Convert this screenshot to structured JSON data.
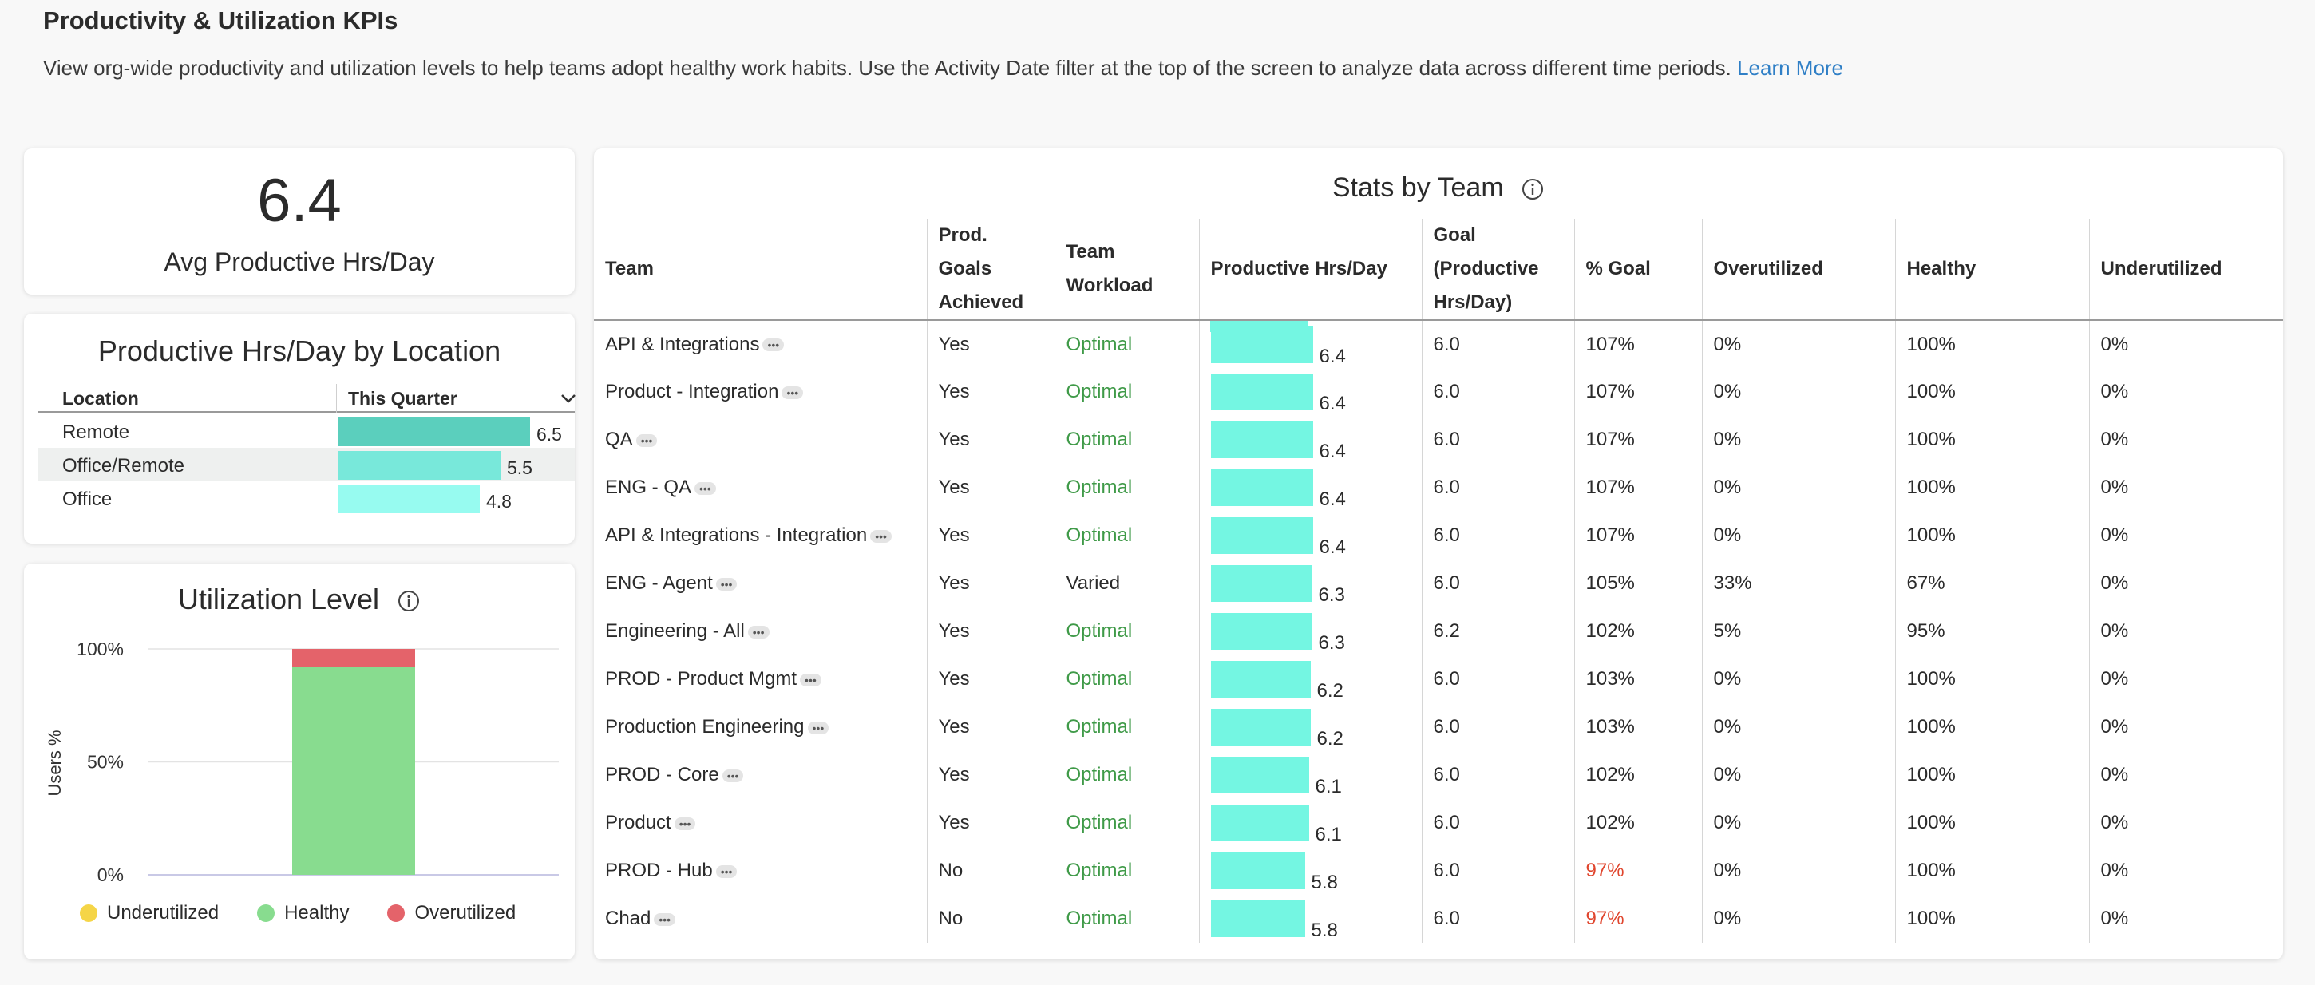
{
  "header": {
    "title": "Productivity & Utilization KPIs",
    "description": "View org-wide productivity and utilization levels to help teams adopt healthy work habits. Use the Activity Date filter at the top of the screen to analyze data across different time periods.",
    "learn_more": "Learn More"
  },
  "kpi": {
    "value": "6.4",
    "label": "Avg Productive Hrs/Day"
  },
  "location": {
    "title": "Productive Hrs/Day by Location",
    "col_location": "Location",
    "col_period": "This Quarter",
    "rows": [
      {
        "label": "Remote",
        "value": 6.5,
        "value_text": "6.5",
        "color": "#5bcfbd"
      },
      {
        "label": "Office/Remote",
        "value": 5.5,
        "value_text": "5.5",
        "color": "#78e8da"
      },
      {
        "label": "Office",
        "value": 4.8,
        "value_text": "4.8",
        "color": "#97fbf0"
      }
    ]
  },
  "utilization": {
    "title": "Utilization Level",
    "chart_data": {
      "type": "bar",
      "stacked": true,
      "ylabel": "Users %",
      "yticks": [
        "0%",
        "50%",
        "100%"
      ],
      "ylim": [
        0,
        100
      ],
      "series": [
        {
          "name": "Underutilized",
          "values": [
            0
          ],
          "color": "#f5d547"
        },
        {
          "name": "Healthy",
          "values": [
            92
          ],
          "color": "#88dc8f"
        },
        {
          "name": "Overutilized",
          "values": [
            8
          ],
          "color": "#e4636a"
        }
      ]
    },
    "legend": [
      "Underutilized",
      "Healthy",
      "Overutilized"
    ]
  },
  "stats": {
    "title": "Stats by Team",
    "columns": [
      "Team",
      "Prod. Goals Achieved",
      "Team Workload",
      "Productive Hrs/Day",
      "Goal (Productive Hrs/Day)",
      "% Goal",
      "Overutilized",
      "Healthy",
      "Underutilized"
    ],
    "bar_max": 6.5,
    "rows": [
      {
        "team": "API & Integrations",
        "achieved": "Yes",
        "workload": "Optimal",
        "hrs": 6.4,
        "hrs_text": "6.4",
        "goal": "6.0",
        "pct": "107%",
        "over": "0%",
        "healthy": "100%",
        "under": "0%"
      },
      {
        "team": "Product - Integration",
        "achieved": "Yes",
        "workload": "Optimal",
        "hrs": 6.4,
        "hrs_text": "6.4",
        "goal": "6.0",
        "pct": "107%",
        "over": "0%",
        "healthy": "100%",
        "under": "0%"
      },
      {
        "team": "QA",
        "achieved": "Yes",
        "workload": "Optimal",
        "hrs": 6.4,
        "hrs_text": "6.4",
        "goal": "6.0",
        "pct": "107%",
        "over": "0%",
        "healthy": "100%",
        "under": "0%"
      },
      {
        "team": "ENG - QA",
        "achieved": "Yes",
        "workload": "Optimal",
        "hrs": 6.4,
        "hrs_text": "6.4",
        "goal": "6.0",
        "pct": "107%",
        "over": "0%",
        "healthy": "100%",
        "under": "0%"
      },
      {
        "team": "API & Integrations - Integration",
        "achieved": "Yes",
        "workload": "Optimal",
        "hrs": 6.4,
        "hrs_text": "6.4",
        "goal": "6.0",
        "pct": "107%",
        "over": "0%",
        "healthy": "100%",
        "under": "0%"
      },
      {
        "team": "ENG - Agent",
        "achieved": "Yes",
        "workload": "Varied",
        "hrs": 6.3,
        "hrs_text": "6.3",
        "goal": "6.0",
        "pct": "105%",
        "over": "33%",
        "healthy": "67%",
        "under": "0%"
      },
      {
        "team": "Engineering - All",
        "achieved": "Yes",
        "workload": "Optimal",
        "hrs": 6.3,
        "hrs_text": "6.3",
        "goal": "6.2",
        "pct": "102%",
        "over": "5%",
        "healthy": "95%",
        "under": "0%"
      },
      {
        "team": "PROD - Product Mgmt",
        "achieved": "Yes",
        "workload": "Optimal",
        "hrs": 6.2,
        "hrs_text": "6.2",
        "goal": "6.0",
        "pct": "103%",
        "over": "0%",
        "healthy": "100%",
        "under": "0%"
      },
      {
        "team": "Production Engineering",
        "achieved": "Yes",
        "workload": "Optimal",
        "hrs": 6.2,
        "hrs_text": "6.2",
        "goal": "6.0",
        "pct": "103%",
        "over": "0%",
        "healthy": "100%",
        "under": "0%"
      },
      {
        "team": "PROD - Core",
        "achieved": "Yes",
        "workload": "Optimal",
        "hrs": 6.1,
        "hrs_text": "6.1",
        "goal": "6.0",
        "pct": "102%",
        "over": "0%",
        "healthy": "100%",
        "under": "0%"
      },
      {
        "team": "Product",
        "achieved": "Yes",
        "workload": "Optimal",
        "hrs": 6.1,
        "hrs_text": "6.1",
        "goal": "6.0",
        "pct": "102%",
        "over": "0%",
        "healthy": "100%",
        "under": "0%"
      },
      {
        "team": "PROD - Hub",
        "achieved": "No",
        "workload": "Optimal",
        "hrs": 5.8,
        "hrs_text": "5.8",
        "goal": "6.0",
        "pct": "97%",
        "over": "0%",
        "healthy": "100%",
        "under": "0%",
        "pct_color": "#e0452d"
      },
      {
        "team": "Chad",
        "achieved": "No",
        "workload": "Optimal",
        "hrs": 5.8,
        "hrs_text": "5.8",
        "goal": "6.0",
        "pct": "97%",
        "over": "0%",
        "healthy": "100%",
        "under": "0%",
        "pct_color": "#e0452d"
      }
    ]
  }
}
